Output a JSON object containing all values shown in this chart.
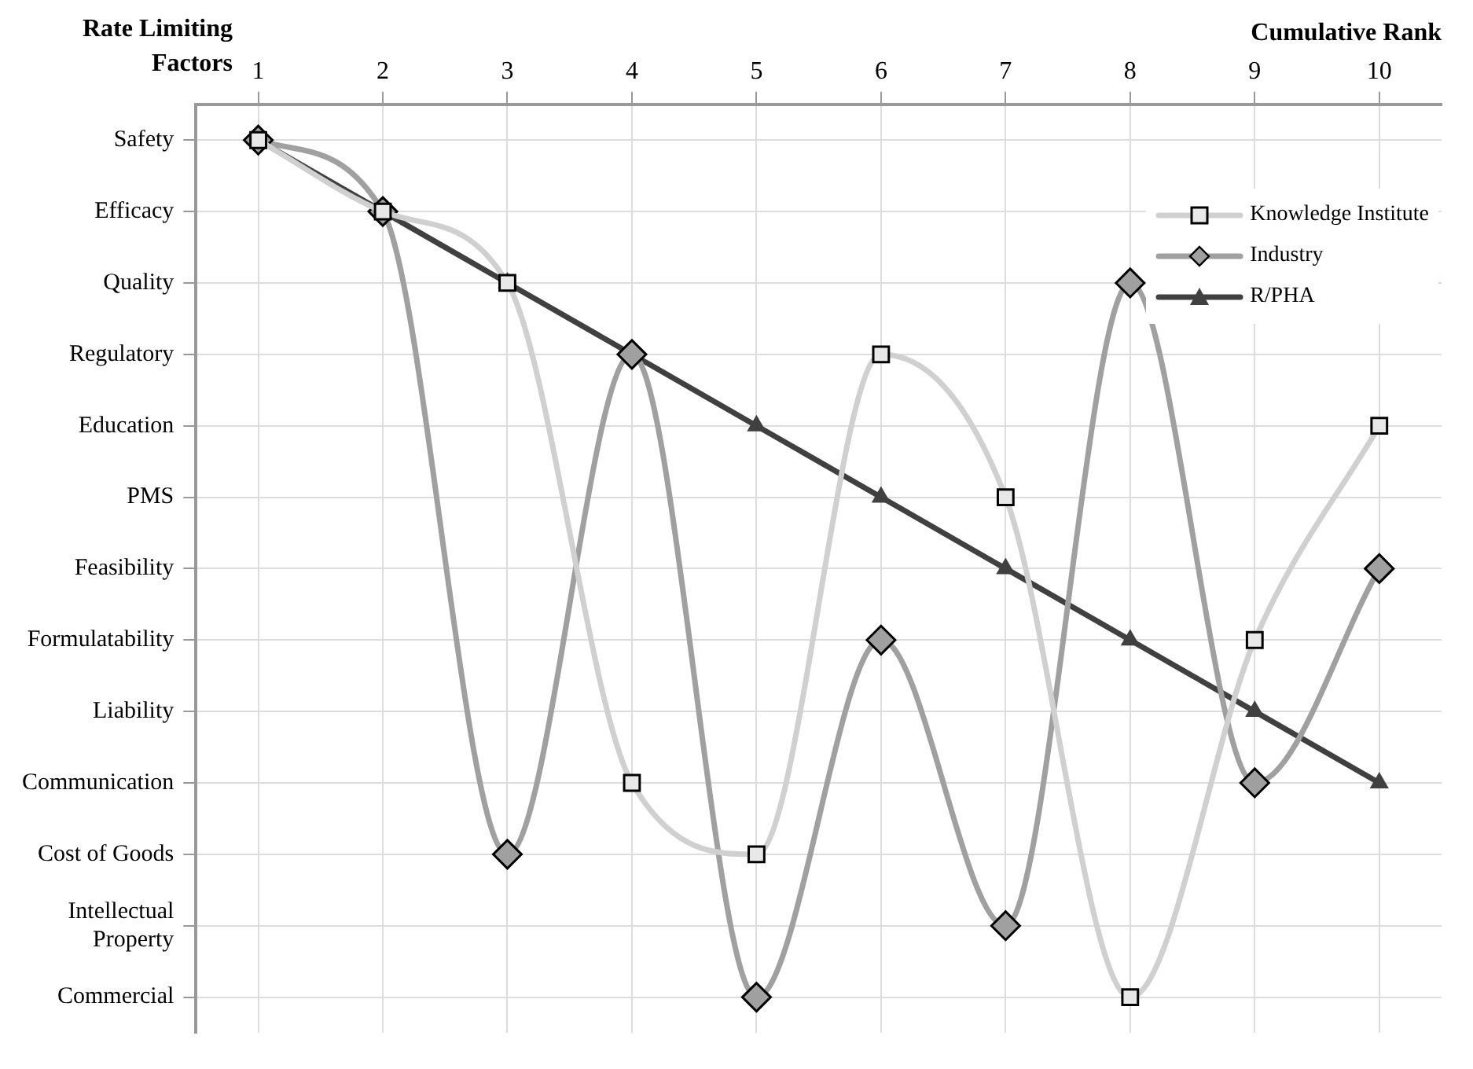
{
  "chart_data": {
    "type": "line",
    "orientation": "horizontal",
    "xlabel": "Cumulative Rank",
    "ylabel": "Rate Limiting Factors",
    "categories": [
      "Safety",
      "Efficacy",
      "Quality",
      "Regulatory",
      "Education",
      "PMS",
      "Feasibility",
      "Formulatability",
      "Liability",
      "Communication",
      "Cost of Goods",
      "Intellectual Property",
      "Commercial"
    ],
    "xlim": [
      0.5,
      10.5
    ],
    "xticks": [
      1,
      2,
      3,
      4,
      5,
      6,
      7,
      8,
      9,
      10
    ],
    "series": [
      {
        "name": "Knowledge Institute",
        "color": "#d0d0d0",
        "marker": "square",
        "values": [
          1,
          2,
          3,
          6,
          10,
          7,
          null,
          9,
          null,
          4,
          5,
          null,
          8
        ]
      },
      {
        "name": "Industry",
        "color": "#a0a0a0",
        "marker": "diamond",
        "values": [
          1,
          2,
          8,
          4,
          null,
          null,
          10,
          6,
          null,
          9,
          3,
          7,
          5
        ]
      },
      {
        "name": "R/PHA",
        "color": "#404040",
        "marker": "triangle",
        "values": [
          1,
          2,
          3,
          4,
          5,
          6,
          7,
          8,
          9,
          10,
          null,
          null,
          null
        ]
      }
    ],
    "grid": true,
    "legend": "top right"
  }
}
